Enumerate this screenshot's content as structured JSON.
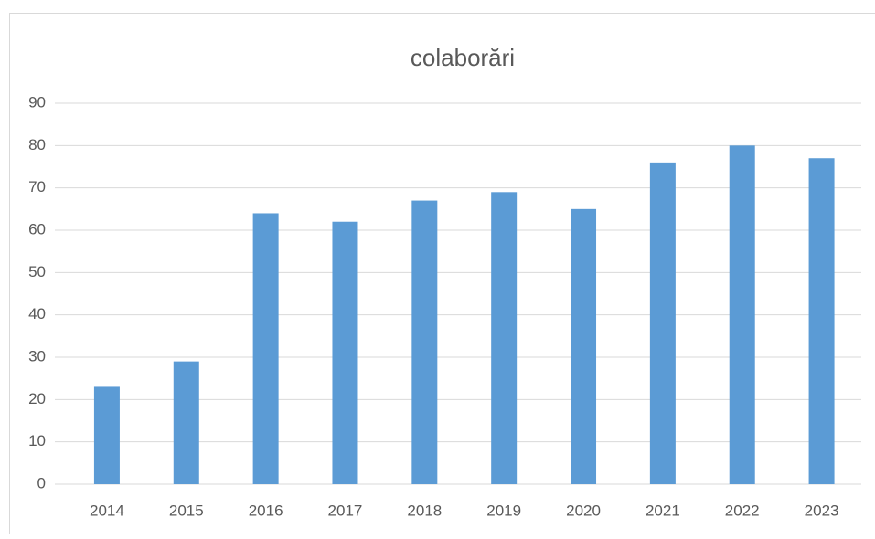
{
  "chart_data": {
    "type": "bar",
    "title": "colaborări",
    "categories": [
      "2014",
      "2015",
      "2016",
      "2017",
      "2018",
      "2019",
      "2020",
      "2021",
      "2022",
      "2023"
    ],
    "values": [
      23,
      29,
      64,
      62,
      67,
      69,
      65,
      76,
      80,
      77
    ],
    "color": "#5b9bd5",
    "ylim": [
      0,
      90
    ],
    "yticks": [
      0,
      10,
      20,
      30,
      40,
      50,
      60,
      70,
      80,
      90
    ],
    "grid": true
  }
}
